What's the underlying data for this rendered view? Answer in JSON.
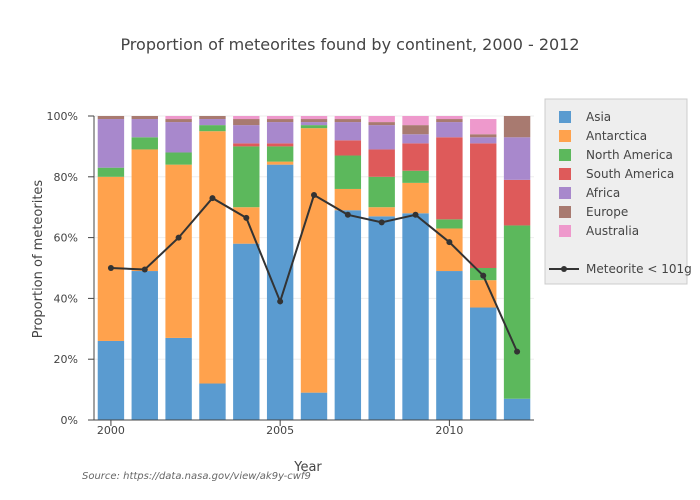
{
  "chart_data": {
    "type": "bar",
    "stacked": true,
    "title": "Proportion of meteorites found by continent, 2000 - 2012",
    "xlabel": "Year",
    "ylabel": "Proportion of meteorites",
    "source": "Source: https://data.nasa.gov/view/ak9y-cwf9",
    "x": [
      2000,
      2001,
      2002,
      2003,
      2004,
      2005,
      2006,
      2007,
      2008,
      2009,
      2010,
      2011,
      2012
    ],
    "x_ticks": [
      2000,
      2005,
      2010
    ],
    "x_tick_labels": [
      "2000",
      "2005",
      "2010"
    ],
    "ylim": [
      0,
      1
    ],
    "y_ticks": [
      0,
      0.2,
      0.4,
      0.6,
      0.8,
      1.0
    ],
    "y_tick_labels": [
      "0%",
      "20%",
      "40%",
      "60%",
      "80%",
      "100%"
    ],
    "grid": true,
    "legend_position": "right",
    "series": [
      {
        "name": "Asia",
        "color": "#5a9bd0",
        "values": [
          0.26,
          0.49,
          0.27,
          0.12,
          0.58,
          0.84,
          0.09,
          0.69,
          0.67,
          0.68,
          0.49,
          0.37,
          0.07
        ]
      },
      {
        "name": "Antarctica",
        "color": "#ffa24d",
        "values": [
          0.54,
          0.4,
          0.57,
          0.83,
          0.12,
          0.01,
          0.87,
          0.07,
          0.03,
          0.1,
          0.14,
          0.09,
          0.0
        ]
      },
      {
        "name": "North America",
        "color": "#5cb85c",
        "values": [
          0.03,
          0.04,
          0.04,
          0.02,
          0.2,
          0.05,
          0.01,
          0.11,
          0.1,
          0.04,
          0.03,
          0.04,
          0.57
        ]
      },
      {
        "name": "South America",
        "color": "#de5a5a",
        "values": [
          0.0,
          0.0,
          0.0,
          0.0,
          0.01,
          0.01,
          0.0,
          0.05,
          0.09,
          0.09,
          0.27,
          0.41,
          0.15
        ]
      },
      {
        "name": "Africa",
        "color": "#a888cc",
        "values": [
          0.16,
          0.06,
          0.1,
          0.02,
          0.06,
          0.07,
          0.01,
          0.06,
          0.08,
          0.03,
          0.05,
          0.02,
          0.14
        ]
      },
      {
        "name": "Europe",
        "color": "#a87a70",
        "values": [
          0.01,
          0.01,
          0.01,
          0.01,
          0.02,
          0.01,
          0.01,
          0.01,
          0.01,
          0.03,
          0.01,
          0.01,
          0.07
        ]
      },
      {
        "name": "Australia",
        "color": "#ee99cc",
        "values": [
          0.0,
          0.0,
          0.01,
          0.0,
          0.01,
          0.01,
          0.01,
          0.01,
          0.02,
          0.03,
          0.01,
          0.05,
          0.0
        ]
      }
    ],
    "line_series": {
      "name": "Meteorite < 101g",
      "color": "#333333",
      "values": [
        0.5,
        0.495,
        0.6,
        0.73,
        0.665,
        0.39,
        0.74,
        0.675,
        0.65,
        0.675,
        0.585,
        0.475,
        0.225
      ]
    }
  }
}
